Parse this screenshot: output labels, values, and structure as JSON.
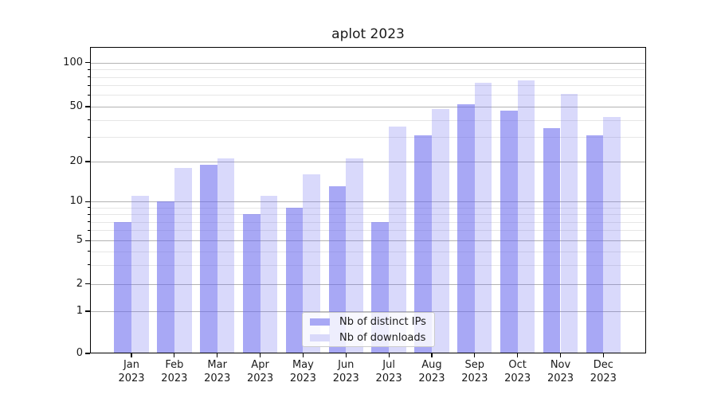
{
  "title": "aplot 2023",
  "legend": {
    "items": [
      {
        "label": "Nb of distinct IPs",
        "color": "#a8a8f5"
      },
      {
        "label": "Nb of downloads",
        "color": "#d9d9fa"
      }
    ]
  },
  "axes": {
    "y_major_ticks": [
      {
        "value": 100,
        "label": "100"
      },
      {
        "value": 50,
        "label": "50"
      },
      {
        "value": 20,
        "label": "20"
      },
      {
        "value": 10,
        "label": "10"
      },
      {
        "value": 5,
        "label": "5"
      },
      {
        "value": 2,
        "label": "2"
      },
      {
        "value": 1,
        "label": "1"
      },
      {
        "value": 0,
        "label": "0"
      }
    ],
    "y_minor_ticks": [
      3,
      4,
      6,
      7,
      8,
      9,
      30,
      40,
      60,
      70,
      80,
      90
    ],
    "x_months": [
      "Jan",
      "Feb",
      "Mar",
      "Apr",
      "May",
      "Jun",
      "Jul",
      "Aug",
      "Sep",
      "Oct",
      "Nov",
      "Dec"
    ],
    "x_year": "2023"
  },
  "chart_data": {
    "type": "bar",
    "title": "aplot 2023",
    "categories": [
      "Jan 2023",
      "Feb 2023",
      "Mar 2023",
      "Apr 2023",
      "May 2023",
      "Jun 2023",
      "Jul 2023",
      "Aug 2023",
      "Sep 2023",
      "Oct 2023",
      "Nov 2023",
      "Dec 2023"
    ],
    "series": [
      {
        "name": "Nb of distinct IPs",
        "color": "#a8a8f5",
        "rgba": "rgba(102,102,238,0.57)",
        "values": [
          7,
          10,
          19,
          8,
          9,
          13,
          7,
          31,
          52,
          47,
          35,
          31
        ]
      },
      {
        "name": "Nb of downloads",
        "color": "#d9d9fa",
        "rgba": "rgba(102,102,238,0.25)",
        "values": [
          11,
          18,
          21,
          11,
          16,
          21,
          36,
          48,
          73,
          76,
          61,
          42
        ]
      }
    ],
    "yscale": "log-like",
    "yticks": [
      0,
      1,
      2,
      5,
      10,
      20,
      50,
      100
    ],
    "ylim": [
      0,
      128
    ],
    "xlabel": "",
    "ylabel": "",
    "grid": "horizontal major+minor",
    "legend_position": "lower center inside axes"
  },
  "colors": {
    "grid_major": "#b3b3b3",
    "grid_minor": "#e6e6e6",
    "axis": "#000000",
    "text": "#1a1a1a",
    "background": "#ffffff"
  }
}
